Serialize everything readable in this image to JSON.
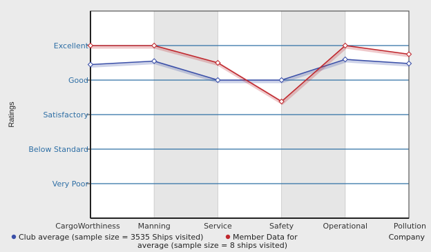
{
  "chart_data": {
    "type": "line",
    "ylabel": "Ratings",
    "categories": [
      "CargoWorthiness",
      "Manning",
      "Service",
      "Safety",
      "Operational",
      "Pollution"
    ],
    "y_levels": [
      "Very Poor",
      "Below Standard",
      "Satisfactory",
      "Good",
      "Excellent"
    ],
    "ylim": [
      0,
      6
    ],
    "grid": true,
    "series": [
      {
        "name": "Club average (sample size = 3535 Ships visited)",
        "color": "#3a4fa8",
        "marker": "diamond",
        "values": [
          4.45,
          4.55,
          4.0,
          4.0,
          4.6,
          4.48
        ]
      },
      {
        "name": "Member Data for Company average (sample size = 8 ships visited)",
        "color": "#c0282e",
        "marker": "diamond",
        "values": [
          5.0,
          5.0,
          4.5,
          3.38,
          5.0,
          4.75
        ]
      }
    ],
    "legend": {
      "position": "bottom",
      "club_label": "Club average (sample size = 3535 Ships visited)",
      "member_label_line1": "Member Data for",
      "member_label_line2": "average (sample size = 8 ships visited)",
      "member_label_company": "Company"
    }
  }
}
